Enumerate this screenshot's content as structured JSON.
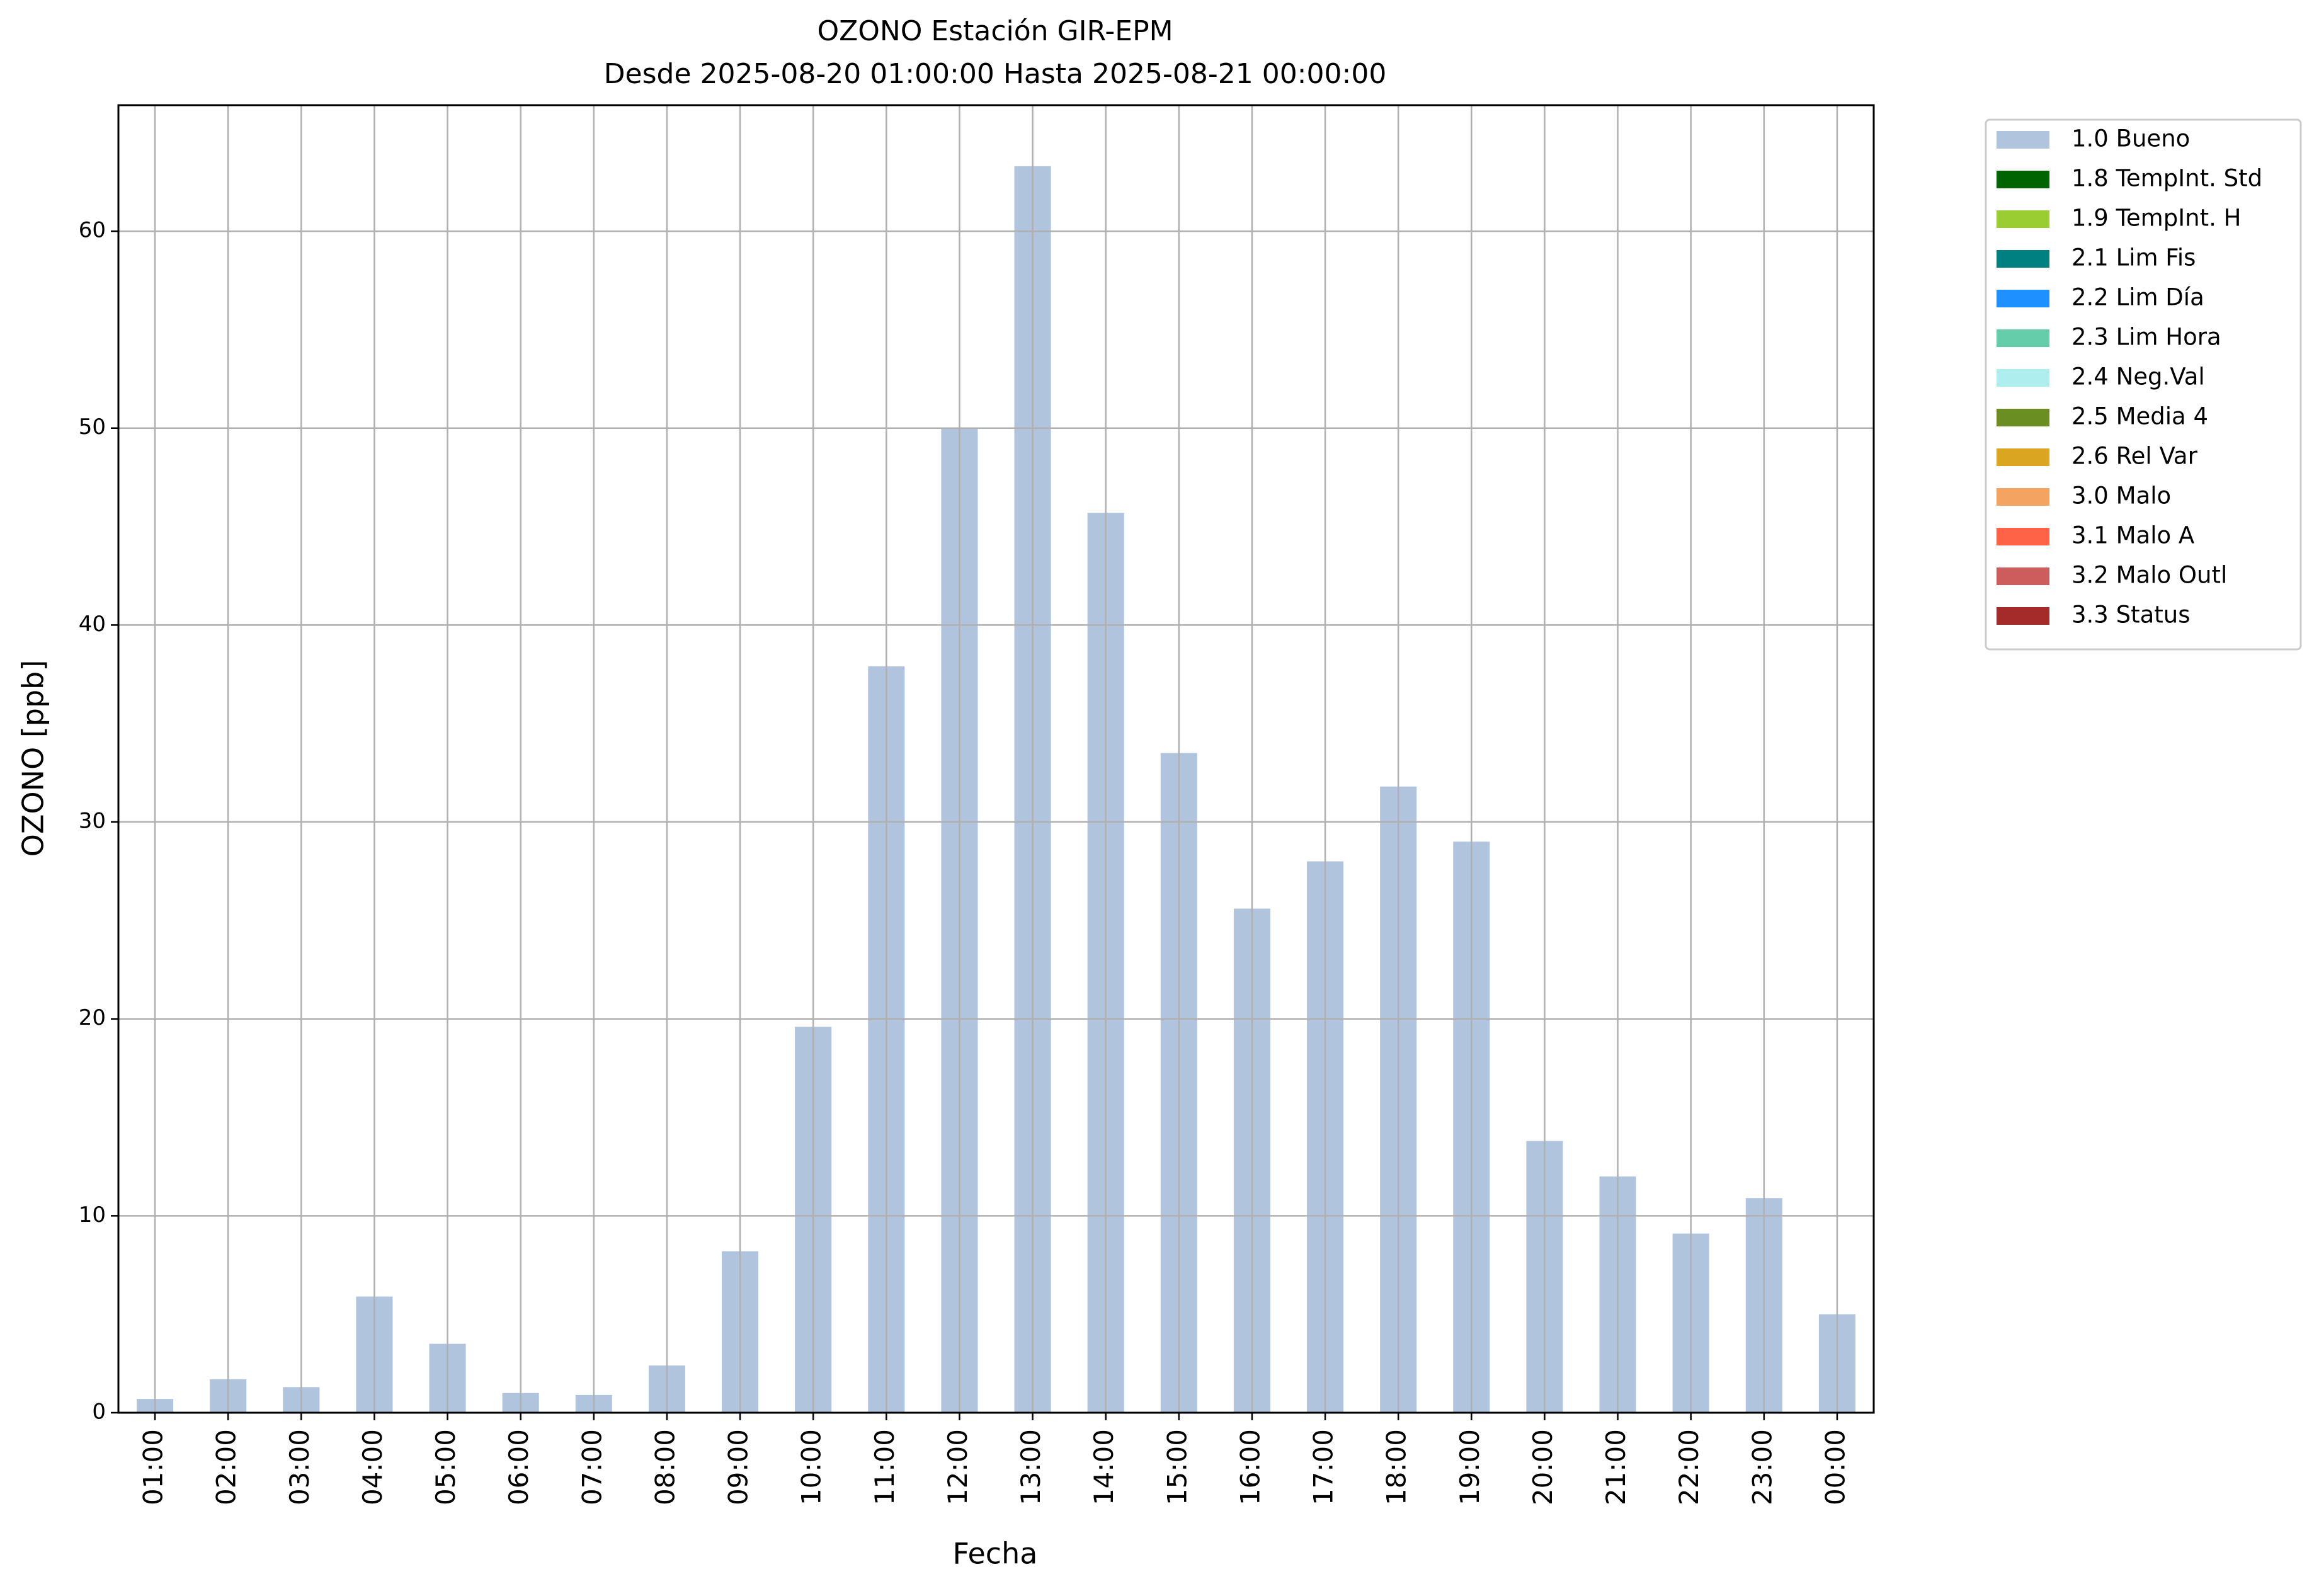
{
  "chart_data": {
    "type": "bar",
    "title": "OZONO Estación GIR-EPM",
    "subtitle": "Desde 2025-08-20 01:00:00 Hasta 2025-08-21 00:00:00",
    "x_label": "Fecha",
    "y_label": "OZONO [ppb]",
    "categories": [
      "01:00",
      "02:00",
      "03:00",
      "04:00",
      "05:00",
      "06:00",
      "07:00",
      "08:00",
      "09:00",
      "10:00",
      "11:00",
      "12:00",
      "13:00",
      "14:00",
      "15:00",
      "16:00",
      "17:00",
      "18:00",
      "19:00",
      "20:00",
      "21:00",
      "22:00",
      "23:00",
      "00:00"
    ],
    "series": [
      {
        "name": "1.0 Bueno",
        "color": "#b0c4de",
        "values": [
          0.7,
          1.7,
          1.3,
          5.9,
          3.5,
          1.0,
          0.9,
          2.4,
          8.2,
          19.6,
          37.9,
          50.0,
          63.3,
          45.7,
          33.5,
          25.6,
          28.0,
          31.8,
          29.0,
          13.8,
          12.0,
          9.1,
          10.9,
          5.0
        ]
      },
      {
        "name": "1.8 TempInt. Std",
        "color": "#006400"
      },
      {
        "name": "1.9 TempInt. H",
        "color": "#9acd32"
      },
      {
        "name": "2.1 Lim Fis",
        "color": "#008080"
      },
      {
        "name": "2.2 Lim Día",
        "color": "#1e90ff"
      },
      {
        "name": "2.3 Lim Hora",
        "color": "#66cdaa"
      },
      {
        "name": "2.4 Neg.Val",
        "color": "#afeeee"
      },
      {
        "name": "2.5 Media 4",
        "color": "#6b8e23"
      },
      {
        "name": "2.6 Rel Var",
        "color": "#daa520"
      },
      {
        "name": "3.0 Malo",
        "color": "#f4a460"
      },
      {
        "name": "3.1 Malo A",
        "color": "#ff6347"
      },
      {
        "name": "3.2 Malo Outl",
        "color": "#cd5c5c"
      },
      {
        "name": "3.3 Status",
        "color": "#a52a2a"
      }
    ],
    "ylim": [
      0,
      66.4
    ],
    "yticks": [
      0,
      10,
      20,
      30,
      40,
      50,
      60
    ],
    "grid": true,
    "legend": "outside-upper-right"
  }
}
